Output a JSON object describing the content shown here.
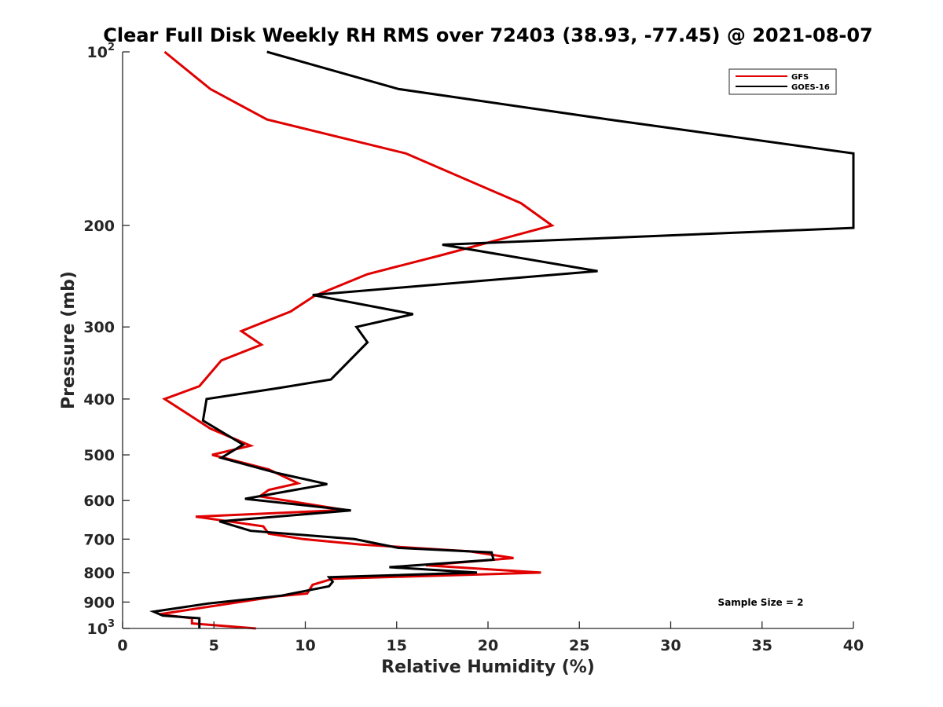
{
  "chart_data": {
    "type": "line",
    "title": "Clear Full Disk Weekly RH RMS over 72403 (38.93, -77.45) @ 2021-08-07",
    "xlabel": "Relative Humidity (%)",
    "ylabel": "Pressure (mb)",
    "xlim": [
      0,
      40
    ],
    "ylim": [
      100,
      1000
    ],
    "y_scale": "log",
    "y_reversed": true,
    "x_ticks": [
      "0",
      "5",
      "10",
      "15",
      "20",
      "25",
      "30",
      "35",
      "40"
    ],
    "y_ticks": [
      {
        "value": 100,
        "base": "10",
        "exp": "2"
      },
      {
        "value": 200,
        "label": "200"
      },
      {
        "value": 300,
        "label": "300"
      },
      {
        "value": 400,
        "label": "400"
      },
      {
        "value": 500,
        "label": "500"
      },
      {
        "value": 600,
        "label": "600"
      },
      {
        "value": 700,
        "label": "700"
      },
      {
        "value": 800,
        "label": "800"
      },
      {
        "value": 900,
        "label": "900"
      },
      {
        "value": 1000,
        "base": "10",
        "exp": "3"
      }
    ],
    "legend_position": "top-right",
    "annotation": "Sample Size = 2",
    "series": [
      {
        "name": "GFS",
        "color": "#e00000",
        "points": [
          [
            2.3,
            100
          ],
          [
            4.8,
            116
          ],
          [
            7.9,
            131
          ],
          [
            15.5,
            150
          ],
          [
            21.8,
            183
          ],
          [
            23.5,
            200
          ],
          [
            17.5,
            225
          ],
          [
            13.4,
            243
          ],
          [
            10.5,
            265
          ],
          [
            9.2,
            282
          ],
          [
            6.5,
            305
          ],
          [
            7.6,
            322
          ],
          [
            5.4,
            343
          ],
          [
            4.2,
            380
          ],
          [
            2.3,
            400
          ],
          [
            4.8,
            450
          ],
          [
            7.0,
            482
          ],
          [
            4.9,
            500
          ],
          [
            8.0,
            530
          ],
          [
            9.6,
            560
          ],
          [
            8.0,
            575
          ],
          [
            7.5,
            590
          ],
          [
            12.2,
            623
          ],
          [
            4.0,
            640
          ],
          [
            7.7,
            665
          ],
          [
            8.0,
            685
          ],
          [
            9.9,
            700
          ],
          [
            13.0,
            715
          ],
          [
            19.0,
            735
          ],
          [
            21.4,
            755
          ],
          [
            16.6,
            777
          ],
          [
            22.9,
            800
          ],
          [
            11.5,
            820
          ],
          [
            10.4,
            840
          ],
          [
            10.1,
            870
          ],
          [
            8.4,
            880
          ],
          [
            2.0,
            945
          ],
          [
            3.8,
            960
          ],
          [
            3.8,
            980
          ],
          [
            7.3,
            1000
          ]
        ]
      },
      {
        "name": "GOES-16",
        "color": "#000000",
        "points": [
          [
            7.9,
            100
          ],
          [
            15.1,
            116
          ],
          [
            26.6,
            131
          ],
          [
            40.0,
            150
          ],
          [
            40.0,
            202
          ],
          [
            17.5,
            216
          ],
          [
            26.0,
            240
          ],
          [
            10.4,
            264
          ],
          [
            15.9,
            285
          ],
          [
            12.8,
            300
          ],
          [
            13.4,
            319
          ],
          [
            11.4,
            370
          ],
          [
            8.5,
            383
          ],
          [
            4.6,
            400
          ],
          [
            4.4,
            436
          ],
          [
            6.6,
            480
          ],
          [
            5.4,
            506
          ],
          [
            8.5,
            538
          ],
          [
            11.2,
            562
          ],
          [
            6.7,
            596
          ],
          [
            12.5,
            624
          ],
          [
            5.3,
            652
          ],
          [
            7.0,
            677
          ],
          [
            12.7,
            700
          ],
          [
            15.1,
            725
          ],
          [
            20.2,
            738
          ],
          [
            20.3,
            760
          ],
          [
            14.6,
            783
          ],
          [
            19.4,
            800
          ],
          [
            11.3,
            815
          ],
          [
            11.5,
            830
          ],
          [
            11.3,
            845
          ],
          [
            8.7,
            877
          ],
          [
            4.7,
            905
          ],
          [
            1.7,
            935
          ],
          [
            2.2,
            950
          ],
          [
            4.2,
            960
          ],
          [
            4.2,
            1000
          ]
        ]
      }
    ]
  }
}
